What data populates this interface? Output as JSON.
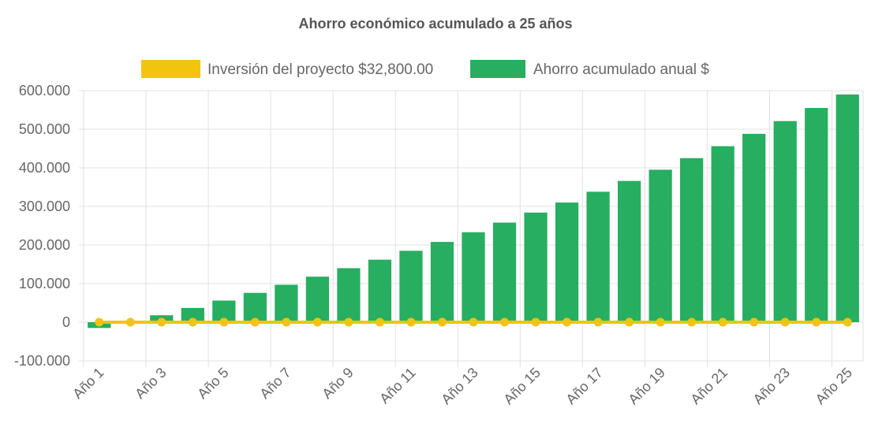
{
  "colors": {
    "investment": "#F1C40F",
    "savings": "#27AE60",
    "grid": "#E0E0E0",
    "axis_text": "#666666",
    "title_text": "#555555"
  },
  "chart_data": {
    "type": "bar",
    "title": "Ahorro económico acumulado a 25 años",
    "legend_position": "top",
    "grid": true,
    "ylim": [
      -100000,
      600000
    ],
    "y_ticks": [
      600000,
      500000,
      400000,
      300000,
      200000,
      100000,
      0,
      -100000
    ],
    "y_tick_labels": [
      "600.000",
      "500.000",
      "400.000",
      "300.000",
      "200.000",
      "100.000",
      "0",
      "-100.000"
    ],
    "categories": [
      "Año 1",
      "Año 2",
      "Año 3",
      "Año 4",
      "Año 5",
      "Año 6",
      "Año 7",
      "Año 8",
      "Año 9",
      "Año 10",
      "Año 11",
      "Año 12",
      "Año 13",
      "Año 14",
      "Año 15",
      "Año 16",
      "Año 17",
      "Año 18",
      "Año 19",
      "Año 20",
      "Año 21",
      "Año 22",
      "Año 23",
      "Año 24",
      "Año 25"
    ],
    "x_tick_labels": [
      "Año 1",
      "Año 3",
      "Año 5",
      "Año 7",
      "Año 9",
      "Año 11",
      "Año 13",
      "Año 15",
      "Año 17",
      "Año 19",
      "Año 21",
      "Año 23",
      "Año 25"
    ],
    "series": [
      {
        "name": "Inversión del proyecto $32,800.00",
        "type": "line",
        "values": [
          0,
          0,
          0,
          0,
          0,
          0,
          0,
          0,
          0,
          0,
          0,
          0,
          0,
          0,
          0,
          0,
          0,
          0,
          0,
          0,
          0,
          0,
          0,
          0,
          0
        ]
      },
      {
        "name": "Ahorro acumulado anual $",
        "type": "bar",
        "values": [
          -15000,
          -1000,
          18000,
          37000,
          56000,
          76000,
          97000,
          118000,
          140000,
          162000,
          185000,
          208000,
          233000,
          258000,
          284000,
          310000,
          338000,
          366000,
          395000,
          425000,
          456000,
          488000,
          521000,
          555000,
          590000
        ]
      }
    ]
  }
}
